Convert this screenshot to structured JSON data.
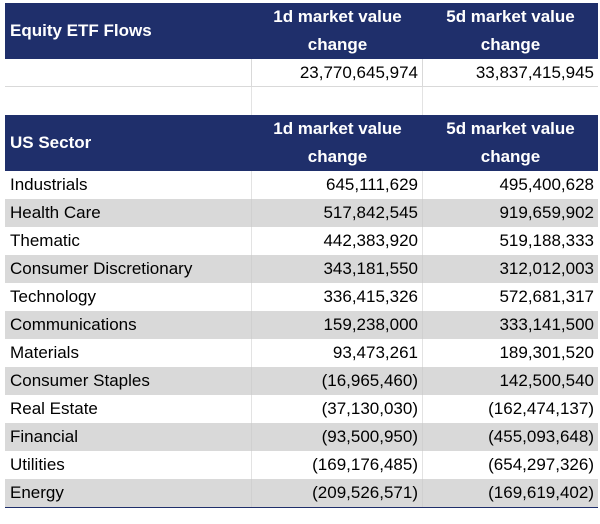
{
  "flows_table": {
    "header": {
      "label": "Equity ETF Flows",
      "col1": "1d market value change",
      "col2": "5d market value change"
    },
    "totals": {
      "label": "",
      "d1": "23,770,645,974",
      "d5": "33,837,415,945"
    }
  },
  "sector_table": {
    "header": {
      "label": "US Sector",
      "col1": "1d market value change",
      "col2": "5d market value change"
    },
    "rows": [
      {
        "sector": "Industrials",
        "d1": "645,111,629",
        "d5": "495,400,628"
      },
      {
        "sector": "Health Care",
        "d1": "517,842,545",
        "d5": "919,659,902"
      },
      {
        "sector": "Thematic",
        "d1": "442,383,920",
        "d5": "519,188,333"
      },
      {
        "sector": "Consumer Discretionary",
        "d1": "343,181,550",
        "d5": "312,012,003"
      },
      {
        "sector": "Technology",
        "d1": "336,415,326",
        "d5": "572,681,317"
      },
      {
        "sector": "Communications",
        "d1": "159,238,000",
        "d5": "333,141,500"
      },
      {
        "sector": "Materials",
        "d1": "93,473,261",
        "d5": "189,301,520"
      },
      {
        "sector": "Consumer Staples",
        "d1": "(16,965,460)",
        "d5": "142,500,540"
      },
      {
        "sector": "Real Estate",
        "d1": "(37,130,030)",
        "d5": "(162,474,137)"
      },
      {
        "sector": "Financial",
        "d1": "(93,500,950)",
        "d5": "(455,093,648)"
      },
      {
        "sector": "Utilities",
        "d1": "(169,176,485)",
        "d5": "(654,297,326)"
      },
      {
        "sector": "Energy",
        "d1": "(209,526,571)",
        "d5": "(169,619,402)"
      }
    ]
  },
  "colors": {
    "header_bg": "#1f2f6b",
    "header_text": "#ffffff",
    "alt_row_bg": "#d9d9d9"
  }
}
